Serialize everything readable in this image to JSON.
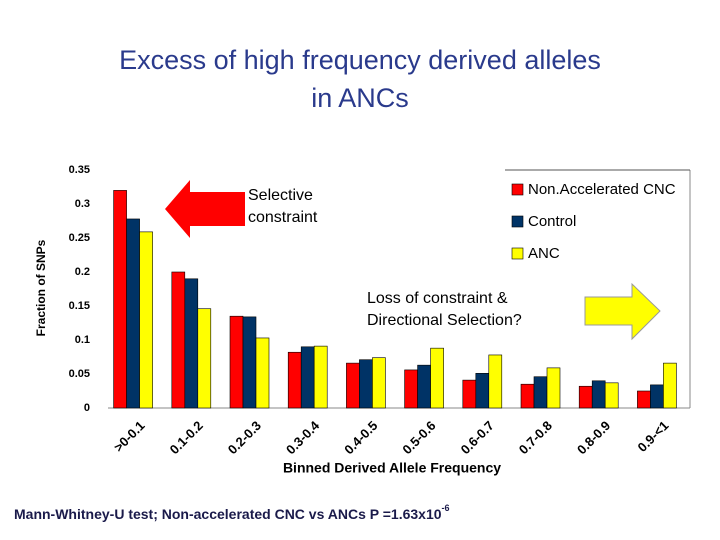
{
  "chart_data": {
    "type": "bar",
    "title": [
      "Excess of high frequency derived alleles",
      "in ANCs"
    ],
    "y_label": "Fraction of SNPs",
    "x_label": "Binned Derived Allele Frequency",
    "categories": [
      ">0-0.1",
      "0.1-0.2",
      "0.2-0.3",
      "0.3-0.4",
      "0.4-0.5",
      "0.5-0.6",
      "0.6-0.7",
      "0.7-0.8",
      "0.8-0.9",
      "0.9-<1"
    ],
    "series": [
      {
        "name": "Non.Accelerated CNC",
        "color": "#ff0000",
        "values": [
          0.32,
          0.2,
          0.135,
          0.082,
          0.066,
          0.056,
          0.041,
          0.035,
          0.032,
          0.025
        ]
      },
      {
        "name": "Control",
        "color": "#003366",
        "values": [
          0.278,
          0.19,
          0.134,
          0.09,
          0.071,
          0.063,
          0.051,
          0.046,
          0.04,
          0.034
        ]
      },
      {
        "name": "ANC",
        "color": "#ffff00",
        "values": [
          0.259,
          0.146,
          0.103,
          0.091,
          0.074,
          0.088,
          0.078,
          0.059,
          0.037,
          0.066
        ]
      }
    ],
    "ylim": [
      0,
      0.35
    ],
    "yticks": [
      0,
      0.05,
      0.1,
      0.15,
      0.2,
      0.25,
      0.3,
      0.35
    ],
    "annotations": [
      {
        "lines": [
          "Selective",
          "constraint"
        ],
        "arrow_color": "#ff0000"
      },
      {
        "lines": [
          "Loss of constraint &",
          "Directional Selection?"
        ],
        "arrow_color": "#ffff00"
      }
    ],
    "footnote": {
      "text": "Mann-Whitney-U test; Non-accelerated CNC vs ANCs P =1.63x10",
      "superscript": "-6"
    }
  }
}
